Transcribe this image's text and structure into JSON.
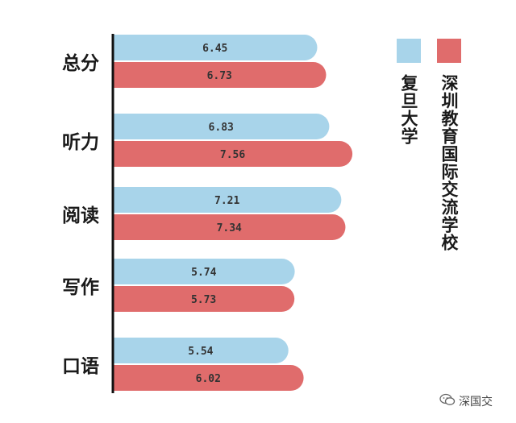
{
  "chart_data": {
    "type": "bar",
    "orientation": "horizontal",
    "categories": [
      "总分",
      "听力",
      "阅读",
      "写作",
      "口语"
    ],
    "series": [
      {
        "name": "复旦大学",
        "color": "#a8d4ea",
        "values": [
          6.45,
          6.83,
          7.21,
          5.74,
          5.54
        ]
      },
      {
        "name": "深圳教育国际交流学校",
        "color": "#e06c6c",
        "values": [
          6.73,
          7.56,
          7.34,
          5.73,
          6.02
        ]
      }
    ],
    "value_labels": [
      [
        "6.45",
        "6.83",
        "7.21",
        "5.74",
        "5.54"
      ],
      [
        "6.73",
        "7.56",
        "7.34",
        "5.73",
        "6.02"
      ]
    ],
    "grid": false,
    "legend_position": "right"
  },
  "legend": {
    "a": {
      "label": "复旦大学",
      "color": "#a8d4ea"
    },
    "b": {
      "label": "深圳教育国际交流学校",
      "color": "#e06c6c"
    }
  },
  "watermark": {
    "text": "深国交",
    "icon": "wechat-icon"
  }
}
